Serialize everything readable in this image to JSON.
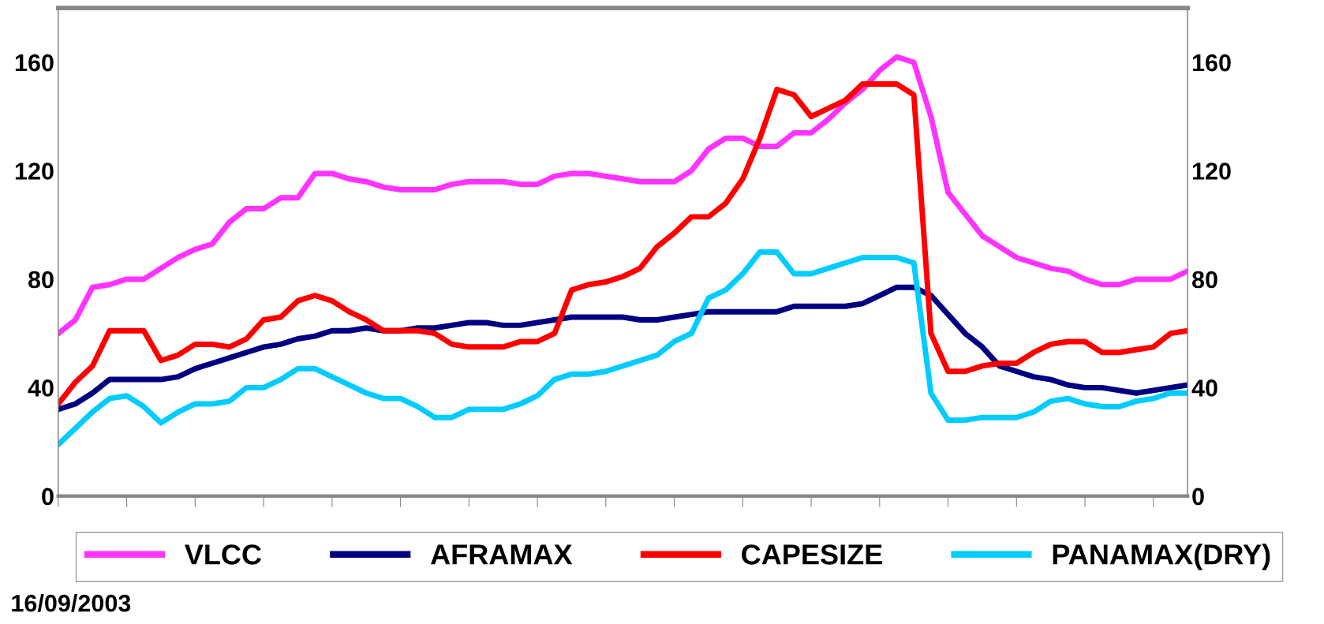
{
  "chart_data": {
    "type": "line",
    "categories": [
      null,
      null,
      null,
      null,
      null,
      null,
      null,
      null,
      null,
      null,
      null,
      null,
      null,
      null,
      null,
      null,
      null,
      null,
      null,
      null,
      null,
      null,
      null,
      null,
      null,
      null,
      null,
      null,
      null,
      null,
      null,
      null,
      null,
      null,
      null,
      null,
      null,
      null,
      null,
      null,
      null,
      null,
      null,
      null,
      null,
      null,
      null,
      null,
      null,
      null,
      null,
      null,
      null,
      null,
      null,
      null,
      null,
      null,
      null,
      null,
      null,
      null,
      null,
      null,
      null,
      null,
      null
    ],
    "series": [
      {
        "name": "VLCC",
        "color": "#ff33ff",
        "values": [
          60,
          65,
          77,
          78,
          80,
          80,
          84,
          88,
          91,
          93,
          101,
          106,
          106,
          110,
          110,
          119,
          119,
          117,
          116,
          114,
          113,
          113,
          113,
          115,
          116,
          116,
          116,
          115,
          115,
          118,
          119,
          119,
          118,
          117,
          116,
          116,
          116,
          120,
          128,
          132,
          132,
          129,
          129,
          134,
          134,
          139,
          145,
          150,
          157,
          162,
          160,
          140,
          112,
          104,
          96,
          92,
          88,
          86,
          84,
          83,
          80,
          78,
          78,
          80,
          80,
          80,
          83
        ]
      },
      {
        "name": "AFRAMAX",
        "color": "#000080",
        "values": [
          32,
          34,
          38,
          43,
          43,
          43,
          43,
          44,
          47,
          49,
          51,
          53,
          55,
          56,
          58,
          59,
          61,
          61,
          62,
          61,
          61,
          62,
          62,
          63,
          64,
          64,
          63,
          63,
          64,
          65,
          66,
          66,
          66,
          66,
          65,
          65,
          66,
          67,
          68,
          68,
          68,
          68,
          68,
          70,
          70,
          70,
          70,
          71,
          74,
          77,
          77,
          74,
          67,
          60,
          55,
          48,
          46,
          44,
          43,
          41,
          40,
          40,
          39,
          38,
          39,
          40,
          41
        ]
      },
      {
        "name": "CAPESIZE",
        "color": "#ff0000",
        "values": [
          34,
          42,
          48,
          61,
          61,
          61,
          50,
          52,
          56,
          56,
          55,
          58,
          65,
          66,
          72,
          74,
          72,
          68,
          65,
          61,
          61,
          61,
          60,
          56,
          55,
          55,
          55,
          57,
          57,
          60,
          76,
          78,
          79,
          81,
          84,
          92,
          97,
          103,
          103,
          108,
          117,
          132,
          150,
          148,
          140,
          143,
          146,
          152,
          152,
          152,
          148,
          60,
          46,
          46,
          48,
          49,
          49,
          53,
          56,
          57,
          57,
          53,
          53,
          54,
          55,
          60,
          61
        ]
      },
      {
        "name": "PANAMAX(DRY)",
        "color": "#00ccff",
        "values": [
          19,
          25,
          31,
          36,
          37,
          33,
          27,
          31,
          34,
          34,
          35,
          40,
          40,
          43,
          47,
          47,
          44,
          41,
          38,
          36,
          36,
          33,
          29,
          29,
          32,
          32,
          32,
          34,
          37,
          43,
          45,
          45,
          46,
          48,
          50,
          52,
          57,
          60,
          73,
          76,
          82,
          90,
          90,
          82,
          82,
          84,
          86,
          88,
          88,
          88,
          86,
          38,
          28,
          28,
          29,
          29,
          29,
          31,
          35,
          36,
          34,
          33,
          33,
          35,
          36,
          38,
          38
        ]
      }
    ],
    "ylim": [
      0,
      180
    ],
    "yticks": [
      0,
      40,
      80,
      120,
      160
    ],
    "y2lim": [
      0,
      180
    ],
    "y2ticks": [
      0,
      40,
      80,
      120,
      160
    ],
    "legend": "bottom",
    "grid": false,
    "marker": "none",
    "line_style": "solid",
    "annotations": [
      "16/09/2003"
    ]
  }
}
